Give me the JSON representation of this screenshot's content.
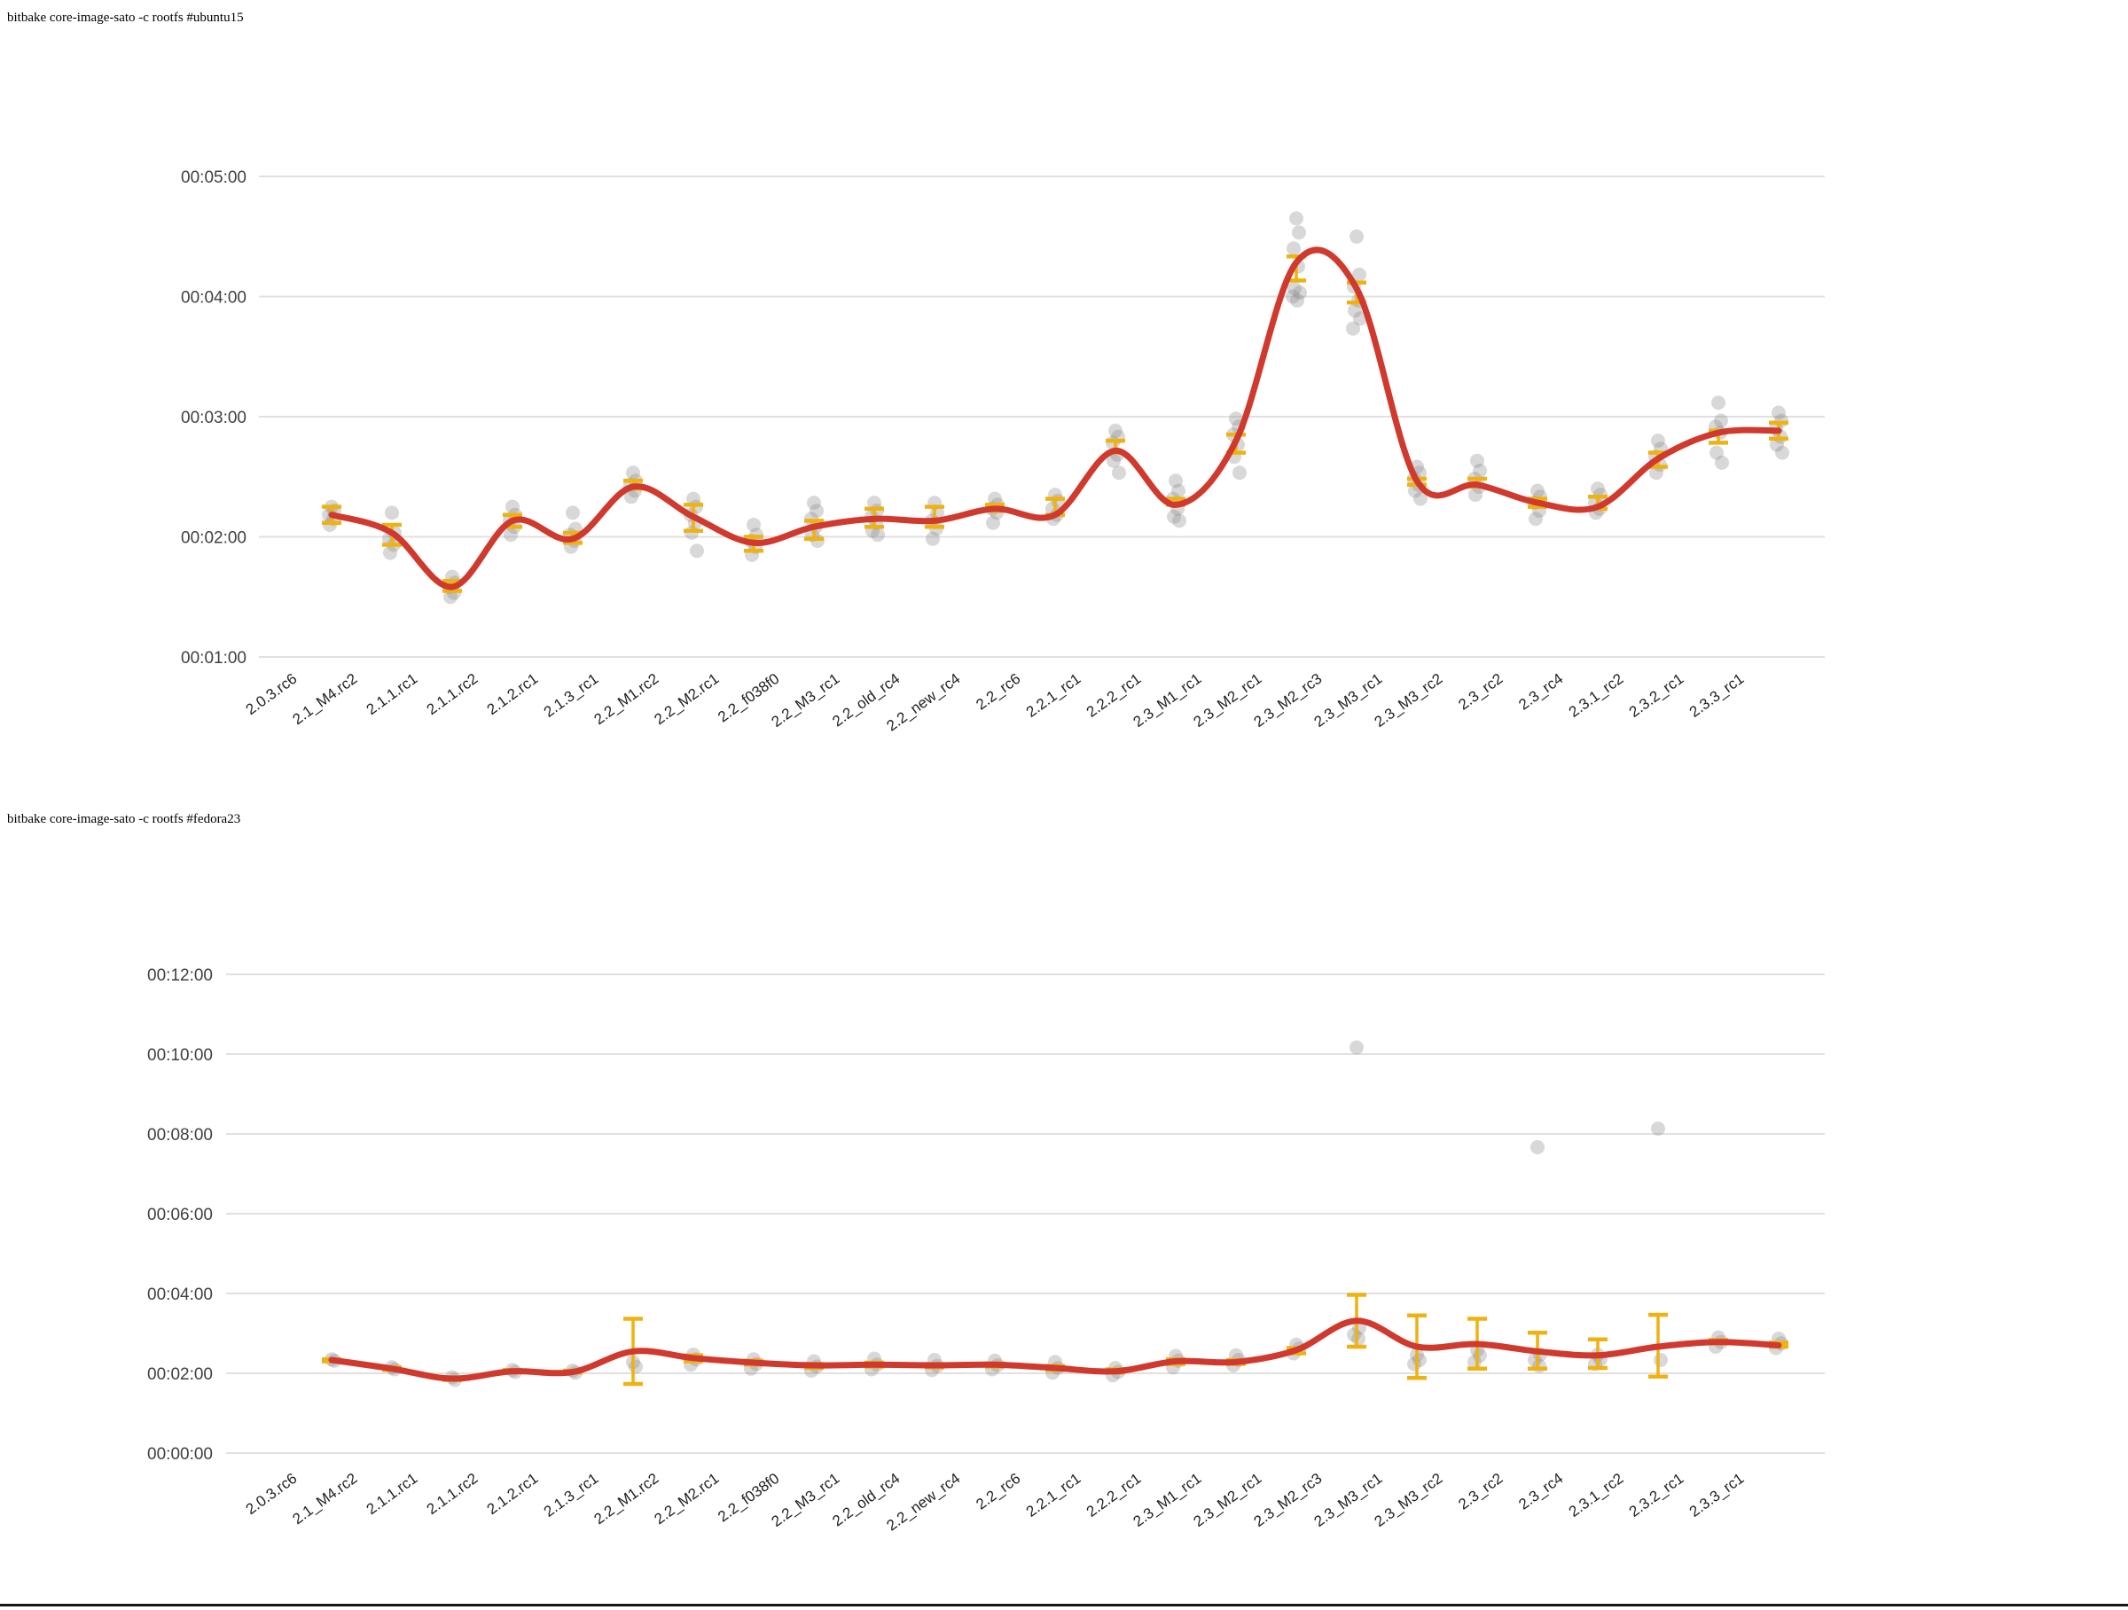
{
  "page": {
    "background": "#ffffff",
    "bottom_rule_color": "#161616"
  },
  "colors": {
    "trend_line": "#d0392e",
    "error_bar": "#eeb211",
    "scatter_point": "#8f8f8f",
    "gridline": "#e0e0e0",
    "y_label": "#404040",
    "x_label": "#1f1f1f"
  },
  "chart_data": [
    {
      "type": "scatter",
      "title": "bitbake core-image-sato -c rootfs #ubuntu15",
      "legend_position": "none",
      "grid": true,
      "ylim_seconds": [
        60,
        300
      ],
      "y_ticks": [
        {
          "label": "00:05:00",
          "seconds": 300
        },
        {
          "label": "00:04:00",
          "seconds": 240
        },
        {
          "label": "00:03:00",
          "seconds": 180
        },
        {
          "label": "00:02:00",
          "seconds": 120
        },
        {
          "label": "00:01:00",
          "seconds": 60
        }
      ],
      "categories": [
        "2.0.3.rc6",
        "2.1_M4.rc2",
        "2.1.1.rc1",
        "2.1.1.rc2",
        "2.1.2.rc1",
        "2.1.3_rc1",
        "2.2_M1.rc2",
        "2.2_M2.rc1",
        "2.2_f038f0",
        "2.2_M3_rc1",
        "2.2_old_rc4",
        "2.2_new_rc4",
        "2.2_rc6",
        "2.2.1_rc1",
        "2.2.2_rc1",
        "2.3_M1_rc1",
        "2.3_M2_rc1",
        "2.3_M2_rc3",
        "2.3_M3_rc1",
        "2.3_M3_rc2",
        "2.3_rc2",
        "2.3_rc4",
        "2.3.1_rc2",
        "2.3.2_rc1",
        "2.3.3_rc1"
      ],
      "series": {
        "trend_mean_seconds": [
          131,
          122,
          95,
          128,
          119,
          145,
          130,
          117,
          125,
          129,
          128,
          134,
          131,
          163,
          136,
          168,
          257,
          244,
          148,
          146,
          137,
          135,
          159,
          172,
          173
        ],
        "error_bar_low_seconds": [
          127,
          116,
          93,
          125,
          117,
          144,
          123,
          113,
          119,
          125,
          125,
          133,
          131,
          162,
          136,
          162,
          248,
          237,
          146,
          145,
          135,
          134,
          155,
          167,
          169
        ],
        "error_bar_high_seconds": [
          135,
          126,
          98,
          131,
          122,
          148,
          136,
          120,
          128,
          134,
          135,
          136,
          139,
          168,
          139,
          171,
          260,
          247,
          149,
          149,
          139,
          140,
          162,
          173,
          177
        ],
        "scatter_points_seconds": [
          [
            135,
            133,
            131,
            129,
            126
          ],
          [
            132,
            122,
            119,
            116,
            112
          ],
          [
            100,
            97,
            95,
            92,
            90
          ],
          [
            135,
            131,
            128,
            125,
            121
          ],
          [
            132,
            124,
            121,
            118,
            115
          ],
          [
            152,
            148,
            146,
            143,
            140
          ],
          [
            139,
            135,
            131,
            127,
            122,
            113
          ],
          [
            126,
            121,
            118,
            115,
            111
          ],
          [
            137,
            133,
            129,
            125,
            121,
            118
          ],
          [
            137,
            133,
            130,
            127,
            123,
            121
          ],
          [
            137,
            132,
            128,
            124,
            119
          ],
          [
            139,
            136,
            134,
            132,
            127
          ],
          [
            141,
            138,
            134,
            131,
            129
          ],
          [
            173,
            170,
            167,
            161,
            158,
            152
          ],
          [
            148,
            143,
            139,
            134,
            130,
            128
          ],
          [
            179,
            175,
            171,
            166,
            160,
            152
          ],
          [
            279,
            272,
            264,
            255,
            244,
            242,
            240,
            238
          ],
          [
            270,
            251,
            245,
            238,
            233,
            229,
            224
          ],
          [
            155,
            152,
            149,
            146,
            143,
            139
          ],
          [
            158,
            153,
            149,
            145,
            141
          ],
          [
            143,
            140,
            137,
            133,
            129
          ],
          [
            144,
            141,
            137,
            134,
            132
          ],
          [
            168,
            164,
            160,
            156,
            152
          ],
          [
            187,
            178,
            175,
            172,
            162,
            157
          ],
          [
            182,
            178,
            174,
            170,
            166,
            162
          ]
        ]
      }
    },
    {
      "type": "scatter",
      "title": "bitbake core-image-sato -c rootfs #fedora23",
      "legend_position": "none",
      "grid": true,
      "ylim_seconds": [
        0,
        720
      ],
      "y_ticks": [
        {
          "label": "00:12:00",
          "seconds": 720
        },
        {
          "label": "00:10:00",
          "seconds": 600
        },
        {
          "label": "00:08:00",
          "seconds": 480
        },
        {
          "label": "00:06:00",
          "seconds": 360
        },
        {
          "label": "00:04:00",
          "seconds": 240
        },
        {
          "label": "00:02:00",
          "seconds": 120
        },
        {
          "label": "00:00:00",
          "seconds": 0
        }
      ],
      "categories": [
        "2.0.3.rc6",
        "2.1_M4.rc2",
        "2.1.1.rc1",
        "2.1.1.rc2",
        "2.1.2.rc1",
        "2.1.3_rc1",
        "2.2_M1.rc2",
        "2.2_M2.rc1",
        "2.2_f038f0",
        "2.2_M3_rc1",
        "2.2_old_rc4",
        "2.2_new_rc4",
        "2.2_rc6",
        "2.2.1_rc1",
        "2.2.2_rc1",
        "2.3_M1_rc1",
        "2.3_M2_rc1",
        "2.3_M2_rc3",
        "2.3_M3_rc1",
        "2.3_M3_rc2",
        "2.3_rc2",
        "2.3_rc4",
        "2.3.1_rc2",
        "2.3.2_rc1",
        "2.3.3_rc1"
      ],
      "series": {
        "trend_mean_seconds": [
          140,
          127,
          112,
          123,
          122,
          153,
          143,
          136,
          132,
          133,
          132,
          133,
          128,
          123,
          138,
          137,
          155,
          199,
          160,
          164,
          153,
          147,
          160,
          167,
          162
        ],
        "error_bar_low_seconds": [
          138,
          125,
          110,
          122,
          121,
          104,
          138,
          133,
          128,
          130,
          129,
          130,
          125,
          121,
          134,
          134,
          150,
          160,
          113,
          127,
          127,
          128,
          115,
          165,
          160
        ],
        "error_bar_high_seconds": [
          141,
          129,
          114,
          125,
          124,
          202,
          147,
          139,
          134,
          136,
          134,
          135,
          131,
          126,
          141,
          140,
          158,
          238,
          207,
          202,
          181,
          171,
          208,
          170,
          166
        ],
        "scatter_points_seconds": [
          [
            141,
            139
          ],
          [
            129,
            126
          ],
          [
            114,
            110
          ],
          [
            125,
            122
          ],
          [
            124,
            121
          ],
          [
            137,
            130
          ],
          [
            148,
            141,
            133
          ],
          [
            141,
            134,
            127
          ],
          [
            138,
            130,
            124
          ],
          [
            142,
            133,
            126
          ],
          [
            140,
            131,
            125
          ],
          [
            139,
            132,
            126
          ],
          [
            137,
            128,
            121
          ],
          [
            128,
            122,
            117
          ],
          [
            146,
            139,
            129
          ],
          [
            147,
            140,
            132
          ],
          [
            163,
            157,
            150
          ],
          [
            610,
            188,
            178,
            172
          ],
          [
            148,
            140,
            134
          ],
          [
            155,
            147,
            137
          ],
          [
            460,
            148,
            140,
            131
          ],
          [
            148,
            141,
            134
          ],
          [
            488,
            140
          ],
          [
            174,
            167,
            160
          ],
          [
            172,
            165,
            158
          ]
        ]
      }
    }
  ]
}
